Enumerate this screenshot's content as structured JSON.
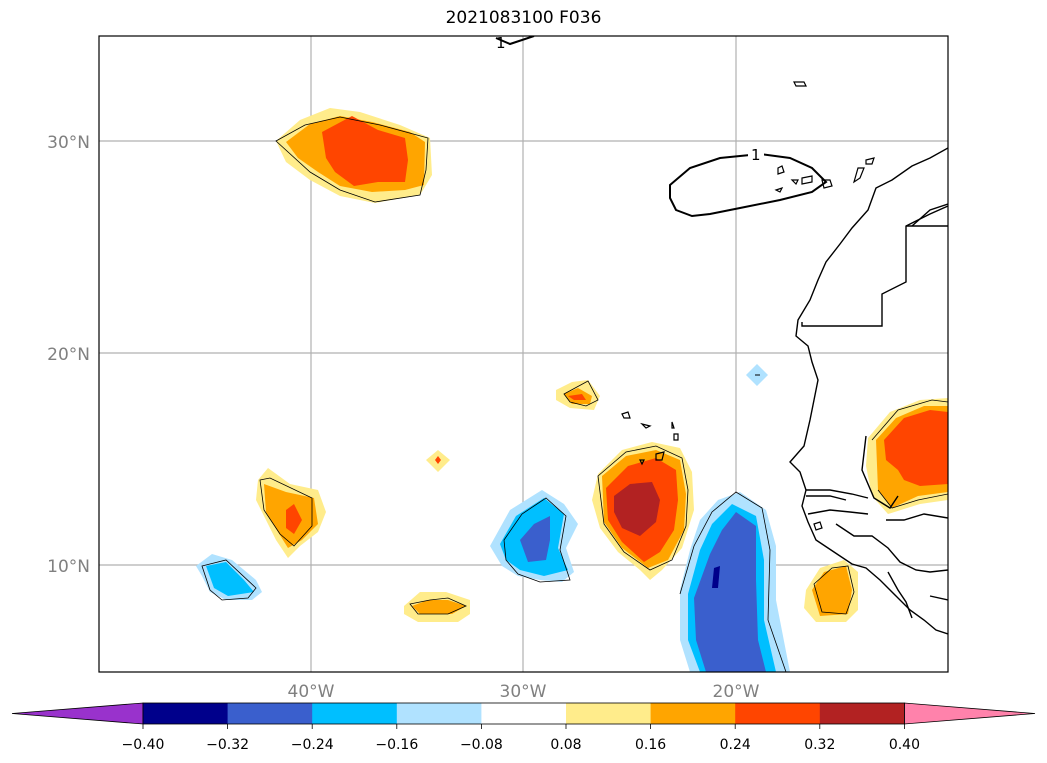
{
  "title": "2021083100 F036",
  "map": {
    "lat_labels": [
      "30°N",
      "20°N",
      "10°N"
    ],
    "lon_labels": [
      "40°W",
      "30°W",
      "20°W"
    ],
    "contour_label": "1"
  },
  "colorbar": {
    "ticks": [
      "−0.40",
      "−0.32",
      "−0.24",
      "−0.16",
      "−0.08",
      "0.08",
      "0.16",
      "0.24",
      "0.32",
      "0.40"
    ],
    "colors": [
      "#9932cc",
      "#00008b",
      "#3a5fcd",
      "#00bfff",
      "#b0e2ff",
      "#ffffff",
      "#ffec8b",
      "#ffa500",
      "#ff4500",
      "#b22222",
      "#ff82ab"
    ]
  }
}
